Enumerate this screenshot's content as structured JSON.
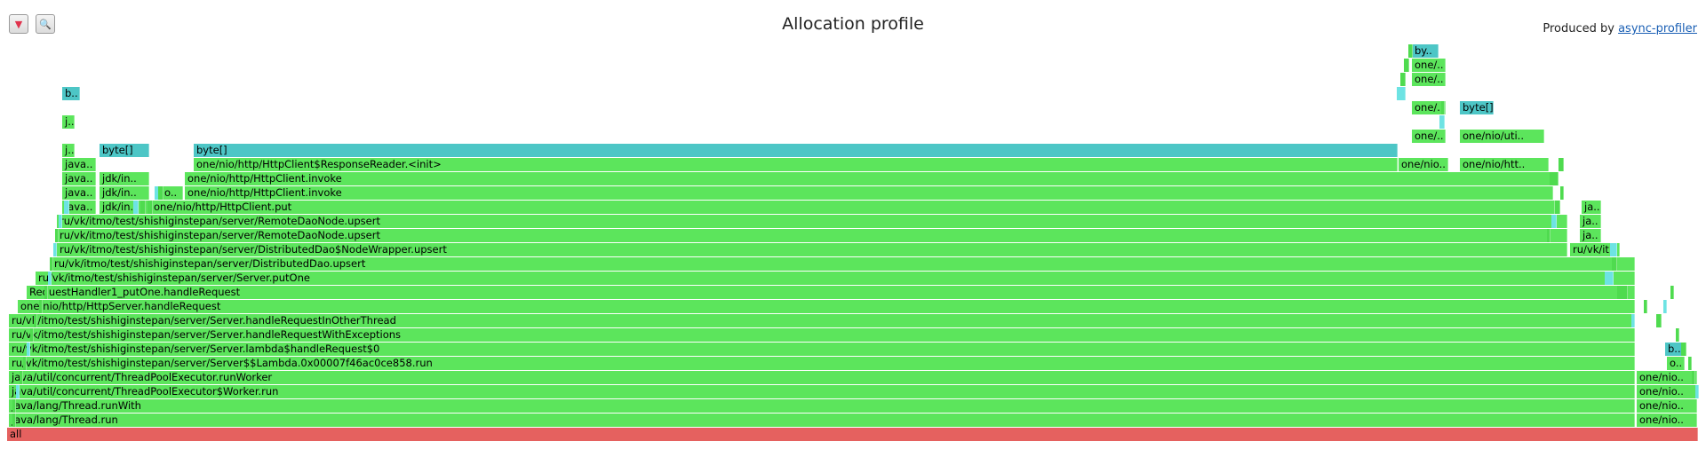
{
  "toolbar": {
    "reverse_icon": "▼",
    "search_icon": "🔍"
  },
  "title": "Allocation profile",
  "credit": {
    "prefix": "Produced by ",
    "link": "async-profiler"
  },
  "colors": {
    "root": "#e5615f",
    "java": "#5ce55c",
    "java_alt": "#4fdb4f",
    "alloc": "#4dc6c6",
    "alloc_light": "#6de3e3",
    "background": "#ffffff"
  },
  "frames": [
    {
      "label": "all",
      "c": "root"
    },
    {
      "label": "java/lang/Thread.run",
      "c": "java"
    },
    {
      "label": "one/nio..",
      "c": "java"
    },
    {
      "label": "java/lang/Thread.runWith",
      "c": "java"
    },
    {
      "label": "one/nio..",
      "c": "java"
    },
    {
      "label": "java/util/concurrent/ThreadPoolExecutor$Worker.run",
      "c": "java"
    },
    {
      "label": "one/nio..",
      "c": "java"
    },
    {
      "label": "java/util/concurrent/ThreadPoolExecutor.runWorker",
      "c": "java"
    },
    {
      "label": "one/nio..",
      "c": "java"
    },
    {
      "label": "ru/vk/itmo/test/shishiginstepan/server/Server$$Lambda.0x00007f46ac0ce858.run",
      "c": "java"
    },
    {
      "label": "o..",
      "c": "java"
    },
    {
      "label": "ru/vk/itmo/test/shishiginstepan/server/Server.lambda$handleRequest$0",
      "c": "java"
    },
    {
      "label": "b..",
      "c": "alloc"
    },
    {
      "label": "ru/vk/itmo/test/shishiginstepan/server/Server.handleRequestWithExceptions",
      "c": "java"
    },
    {
      "label": "ru/vk/itmo/test/shishiginstepan/server/Server.handleRequestInOtherThread",
      "c": "java"
    },
    {
      "label": "one/nio/http/HttpServer.handleRequest",
      "c": "java"
    },
    {
      "label": "RequestHandler1_putOne.handleRequest",
      "c": "java"
    },
    {
      "label": "ru/vk/itmo/test/shishiginstepan/server/Server.putOne",
      "c": "java"
    },
    {
      "label": "ru/vk/itmo/test/shishiginstepan/server/DistributedDao.upsert",
      "c": "java"
    },
    {
      "label": "ru/vk/itmo/test/shishiginstepan/server/DistributedDao$NodeWrapper.upsert",
      "c": "java"
    },
    {
      "label": "ru/vk/it..",
      "c": "java"
    },
    {
      "label": "ru/vk/itmo/test/shishiginstepan/server/RemoteDaoNode.upsert",
      "c": "java"
    },
    {
      "label": "ja..",
      "c": "java"
    },
    {
      "label": "ru/vk/itmo/test/shishiginstepan/server/RemoteDaoNode.upsert",
      "c": "java"
    },
    {
      "label": "ja..",
      "c": "java"
    },
    {
      "label": "java..",
      "c": "java"
    },
    {
      "label": "jdk/in..",
      "c": "java"
    },
    {
      "label": "one/nio/http/HttpClient.put",
      "c": "java"
    },
    {
      "label": "ja..",
      "c": "java"
    },
    {
      "label": "java..",
      "c": "java"
    },
    {
      "label": "jdk/in..",
      "c": "java"
    },
    {
      "label": "o..",
      "c": "java"
    },
    {
      "label": "one/nio/http/HttpClient.invoke",
      "c": "java"
    },
    {
      "label": "java..",
      "c": "java"
    },
    {
      "label": "jdk/in..",
      "c": "java"
    },
    {
      "label": "one/nio/http/HttpClient.invoke",
      "c": "java"
    },
    {
      "label": "java..",
      "c": "java"
    },
    {
      "label": "one/nio/http/HttpClient$ResponseReader.<init>",
      "c": "java"
    },
    {
      "label": "one/nio..",
      "c": "java"
    },
    {
      "label": "one/nio/htt..",
      "c": "java"
    },
    {
      "label": "j..",
      "c": "java"
    },
    {
      "label": "byte[]",
      "c": "alloc"
    },
    {
      "label": "byte[]",
      "c": "alloc"
    },
    {
      "label": "one/..",
      "c": "java"
    },
    {
      "label": "one/nio/uti..",
      "c": "java"
    },
    {
      "label": "j..",
      "c": "java"
    },
    {
      "label": "one/..",
      "c": "java"
    },
    {
      "label": "byte[]",
      "c": "alloc"
    },
    {
      "label": "b..",
      "c": "alloc"
    },
    {
      "label": "one/..",
      "c": "java"
    },
    {
      "label": "one/..",
      "c": "java"
    },
    {
      "label": "by..",
      "c": "alloc"
    }
  ]
}
